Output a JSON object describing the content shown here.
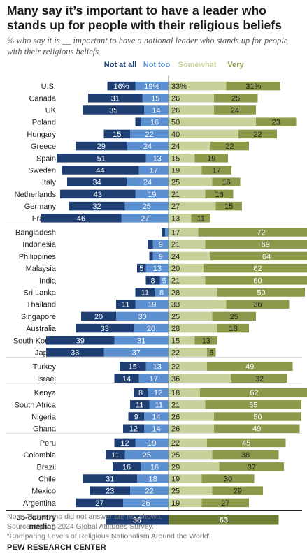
{
  "title": "Many say it’s important to have a leader who stands up for people with their religious beliefs",
  "subtitle": "% who say it is __ important to have a national leader who stands up for people with their religious beliefs",
  "notes": [
    "Note: Those who did not answer are not shown.",
    "Source: Spring 2024 Global Attitudes Survey.",
    "“Comparing Levels of Religious Nationalism Around the World”"
  ],
  "footer": "PEW RESEARCH CENTER",
  "colors": {
    "not_at_all": "#1f3f73",
    "not_too": "#5b8fcf",
    "somewhat": "#c7d29a",
    "very": "#8a9a4a",
    "median_left": "#1f3f73",
    "median_right": "#6e7f35"
  },
  "chart_data": {
    "type": "bar",
    "orientation": "horizontal-diverging",
    "legend": [
      "Not at all",
      "Not too",
      "Somewhat",
      "Very"
    ],
    "categories": [
      "U.S.",
      "Canada",
      "UK",
      "Poland",
      "Hungary",
      "Greece",
      "Spain",
      "Sweden",
      "Italy",
      "Netherlands",
      "Germany",
      "France",
      "Bangladesh",
      "Indonesia",
      "Philippines",
      "Malaysia",
      "India",
      "Sri Lanka",
      "Thailand",
      "Singapore",
      "Australia",
      "South Korea",
      "Japan",
      "Turkey",
      "Israel",
      "Kenya",
      "South Africa",
      "Nigeria",
      "Ghana",
      "Peru",
      "Colombia",
      "Brazil",
      "Chile",
      "Mexico",
      "Argentina"
    ],
    "series": [
      {
        "name": "Not at all",
        "values": [
          16,
          31,
          35,
          3,
          15,
          29,
          51,
          44,
          34,
          43,
          32,
          46,
          2,
          3,
          2,
          5,
          8,
          11,
          11,
          20,
          33,
          39,
          33,
          15,
          14,
          8,
          11,
          9,
          12,
          12,
          11,
          16,
          31,
          23,
          27
        ]
      },
      {
        "name": "Not too",
        "values": [
          19,
          15,
          14,
          16,
          22,
          24,
          13,
          17,
          24,
          19,
          25,
          27,
          2,
          9,
          9,
          13,
          5,
          8,
          19,
          30,
          20,
          31,
          37,
          13,
          17,
          12,
          11,
          14,
          14,
          19,
          25,
          16,
          18,
          22,
          26
        ]
      },
      {
        "name": "Somewhat",
        "values": [
          33,
          26,
          26,
          50,
          40,
          24,
          15,
          19,
          25,
          21,
          27,
          13,
          17,
          21,
          24,
          20,
          21,
          28,
          33,
          25,
          28,
          15,
          22,
          22,
          36,
          18,
          21,
          26,
          26,
          22,
          25,
          29,
          19,
          25,
          19
        ]
      },
      {
        "name": "Very",
        "values": [
          31,
          25,
          24,
          23,
          22,
          22,
          19,
          17,
          16,
          16,
          15,
          11,
          72,
          69,
          64,
          62,
          60,
          50,
          36,
          25,
          18,
          13,
          5,
          49,
          32,
          62,
          55,
          50,
          49,
          45,
          38,
          37,
          30,
          29,
          27
        ]
      }
    ],
    "value_labels": {
      "not_at_all": [
        "16%",
        "31",
        "35",
        "",
        "15",
        "29",
        "51",
        "44",
        "34",
        "43",
        "32",
        "46",
        "",
        "",
        "",
        "5",
        "8",
        "11",
        "11",
        "20",
        "33",
        "39",
        "33",
        "15",
        "14",
        "8",
        "11",
        "9",
        "12",
        "12",
        "11",
        "16",
        "31",
        "23",
        "27"
      ],
      "not_too": [
        "19%",
        "15",
        "14",
        "16",
        "22",
        "24",
        "13",
        "17",
        "24",
        "19",
        "25",
        "27",
        "",
        "9",
        "9",
        "13",
        "5",
        "8",
        "19",
        "30",
        "20",
        "31",
        "37",
        "13",
        "17",
        "12",
        "11",
        "14",
        "14",
        "19",
        "25",
        "16",
        "18",
        "22",
        "26"
      ],
      "somewhat": [
        "33%",
        "26",
        "26",
        "50",
        "40",
        "24",
        "15",
        "19",
        "25",
        "21",
        "27",
        "13",
        "17",
        "21",
        "24",
        "20",
        "21",
        "28",
        "33",
        "25",
        "28",
        "15",
        "22",
        "22",
        "36",
        "18",
        "21",
        "26",
        "26",
        "22",
        "25",
        "29",
        "19",
        "25",
        "19"
      ],
      "very": [
        "31%",
        "25",
        "24",
        "23",
        "22",
        "22",
        "19",
        "17",
        "16",
        "16",
        "15",
        "11",
        "72",
        "69",
        "64",
        "62",
        "60",
        "50",
        "36",
        "25",
        "18",
        "13",
        "5",
        "49",
        "32",
        "62",
        "55",
        "50",
        "49",
        "45",
        "38",
        "37",
        "30",
        "29",
        "27"
      ]
    },
    "groups": [
      12,
      11,
      2,
      4,
      6
    ],
    "median": {
      "label": "35-country median",
      "not_important": 36,
      "important": 63
    }
  }
}
